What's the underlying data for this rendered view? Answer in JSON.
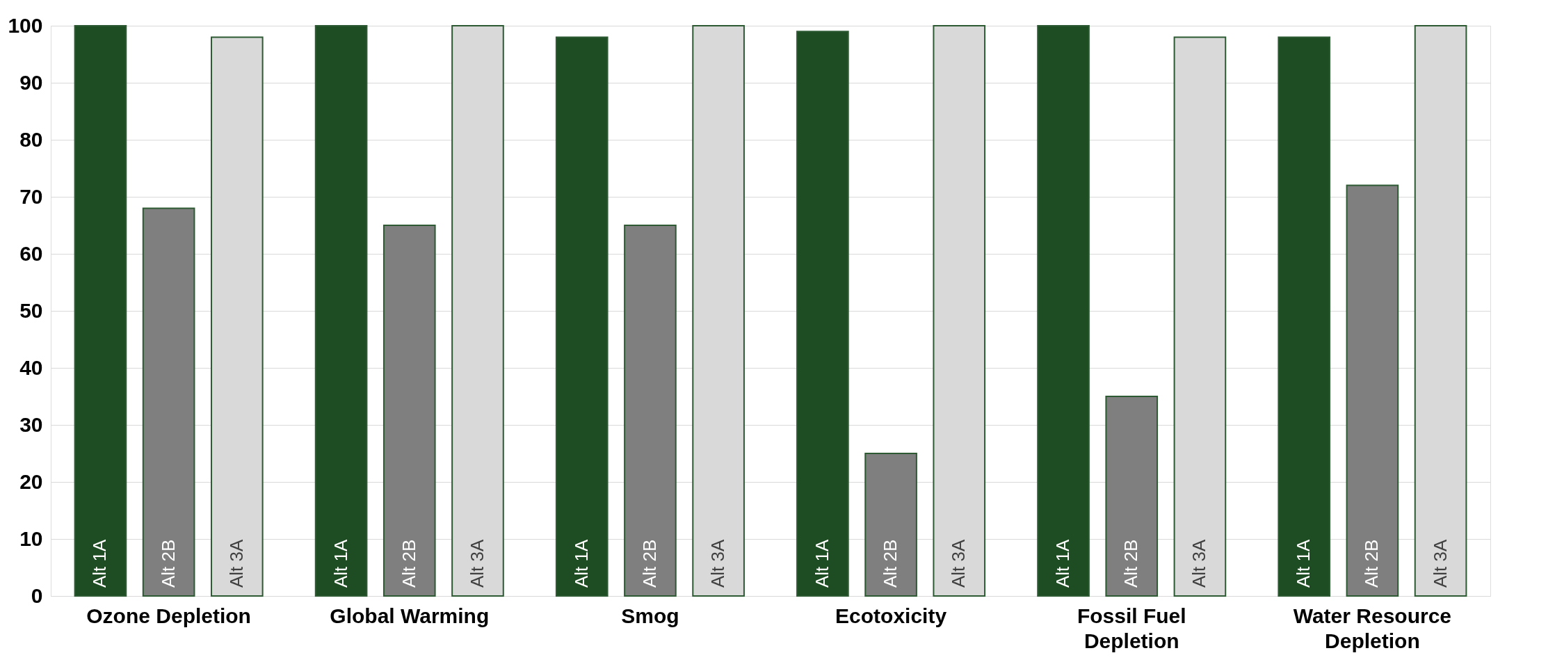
{
  "chart_data": {
    "type": "bar",
    "categories": [
      "Ozone Depletion",
      "Global Warming",
      "Smog",
      "Ecotoxicity",
      "Fossil Fuel\nDepletion",
      "Water Resource\nDepletion"
    ],
    "series": [
      {
        "name": "Alt 1A",
        "color": "#1f4d23",
        "values": [
          100,
          100,
          98,
          99,
          100,
          98
        ]
      },
      {
        "name": "Alt 2B",
        "color": "#7f7f7f",
        "values": [
          68,
          65,
          65,
          25,
          35,
          72
        ]
      },
      {
        "name": "Alt 3A",
        "color": "#d9d9d9",
        "values": [
          98,
          100,
          100,
          100,
          98,
          100
        ]
      }
    ],
    "ylim": [
      0,
      100
    ],
    "yticks": [
      0,
      10,
      20,
      30,
      40,
      50,
      60,
      70,
      80,
      90,
      100
    ],
    "grid": "y",
    "legend": false
  }
}
